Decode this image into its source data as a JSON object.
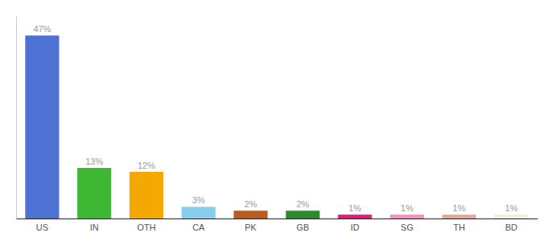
{
  "chart_data": {
    "type": "bar",
    "categories": [
      "US",
      "IN",
      "OTH",
      "CA",
      "PK",
      "GB",
      "ID",
      "SG",
      "TH",
      "BD"
    ],
    "values": [
      47,
      13,
      12,
      3,
      2,
      2,
      1,
      1,
      1,
      1
    ],
    "value_labels": [
      "47%",
      "13%",
      "12%",
      "3%",
      "2%",
      "2%",
      "1%",
      "1%",
      "1%",
      "1%"
    ],
    "colors": [
      "#4d72d4",
      "#3cb832",
      "#f5a800",
      "#87ceeb",
      "#b85c20",
      "#2d8a2d",
      "#e8197a",
      "#f890c0",
      "#e8a898",
      "#f0eedc"
    ],
    "ylim": [
      0,
      52
    ],
    "tick_labels": "x"
  }
}
